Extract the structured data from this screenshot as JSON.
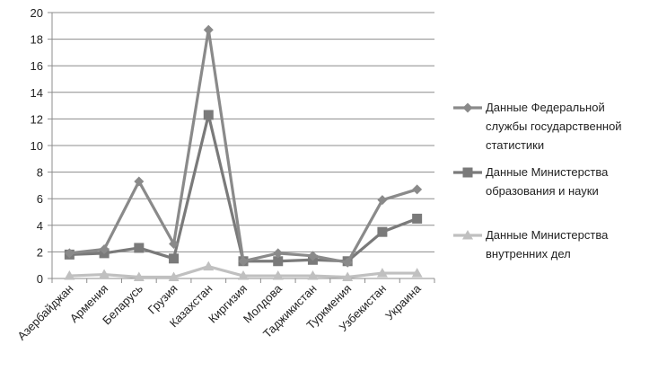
{
  "chart_data": {
    "type": "line",
    "categories": [
      "Азербайджан",
      "Армения",
      "Беларусь",
      "Грузия",
      "Казахстан",
      "Киргизия",
      "Молдова",
      "Таджикистан",
      "Туркмения",
      "Узбекистан",
      "Украина"
    ],
    "ylim": [
      0,
      20
    ],
    "yticks": [
      "0",
      "2",
      "4",
      "6",
      "8",
      "10",
      "12",
      "14",
      "16",
      "18",
      "20"
    ],
    "grid": true,
    "legend_position": "right",
    "series": [
      {
        "name_lines": [
          "Данные Федеральной",
          "службы государственной",
          "статистики"
        ],
        "marker": "diamond",
        "color": "#8a8a8a",
        "values": [
          1.9,
          2.2,
          7.3,
          2.6,
          18.7,
          1.3,
          1.9,
          1.7,
          1.2,
          5.9,
          6.7
        ]
      },
      {
        "name_lines": [
          "Данные Министерства",
          "образования и науки"
        ],
        "marker": "square",
        "color": "#7a7a7a",
        "values": [
          1.8,
          1.9,
          2.3,
          1.5,
          12.3,
          1.3,
          1.3,
          1.4,
          1.3,
          3.5,
          4.5
        ]
      },
      {
        "name_lines": [
          "Данные Министерства",
          "внутренних дел"
        ],
        "marker": "triangle",
        "color": "#c0c0c0",
        "values": [
          0.2,
          0.3,
          0.1,
          0.1,
          0.9,
          0.2,
          0.2,
          0.2,
          0.1,
          0.4,
          0.4
        ]
      }
    ]
  }
}
